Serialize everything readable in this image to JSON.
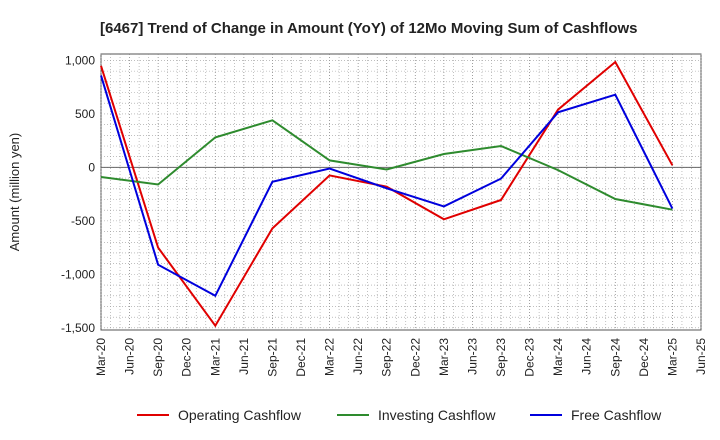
{
  "chart_data": {
    "type": "line",
    "title": "[6467]  Trend of Change in Amount (YoY) of 12Mo Moving Sum of Cashflows",
    "xlabel": "",
    "ylabel": "Amount (million yen)",
    "ylim": [
      -1520,
      1060
    ],
    "yticks": [
      1000,
      500,
      0,
      -500,
      -1000,
      -1500
    ],
    "ytick_labels": [
      "1,000",
      "500",
      "0",
      "-500",
      "-1,000",
      "-1,500"
    ],
    "categories": [
      "Mar-20",
      "Jun-20",
      "Sep-20",
      "Dec-20",
      "Mar-21",
      "Jun-21",
      "Sep-21",
      "Dec-21",
      "Mar-22",
      "Jun-22",
      "Sep-22",
      "Dec-22",
      "Mar-23",
      "Jun-23",
      "Sep-23",
      "Dec-23",
      "Mar-24",
      "Jun-24",
      "Sep-24",
      "Dec-24",
      "Mar-25",
      "Jun-25"
    ],
    "grid": true,
    "legend_position": "bottom",
    "series": [
      {
        "name": "Operating Cashflow",
        "color": "#e00000",
        "x": [
          "Mar-20",
          "Sep-20",
          "Mar-21",
          "Sep-21",
          "Mar-22",
          "Sep-22",
          "Mar-23",
          "Sep-23",
          "Mar-24",
          "Sep-24",
          "Mar-25"
        ],
        "values": [
          950,
          -750,
          -1480,
          -570,
          -75,
          -180,
          -485,
          -305,
          540,
          985,
          20
        ]
      },
      {
        "name": "Investing Cashflow",
        "color": "#2e8b2e",
        "x": [
          "Mar-20",
          "Sep-20",
          "Mar-21",
          "Sep-21",
          "Mar-22",
          "Sep-22",
          "Mar-23",
          "Sep-23",
          "Mar-24",
          "Sep-24",
          "Mar-25"
        ],
        "values": [
          -90,
          -160,
          280,
          440,
          65,
          -20,
          125,
          200,
          -25,
          -295,
          -395
        ]
      },
      {
        "name": "Free Cashflow",
        "color": "#0000dd",
        "x": [
          "Mar-20",
          "Sep-20",
          "Mar-21",
          "Sep-21",
          "Mar-22",
          "Sep-22",
          "Mar-23",
          "Sep-23",
          "Mar-24",
          "Sep-24",
          "Mar-25"
        ],
        "values": [
          860,
          -910,
          -1200,
          -135,
          -10,
          -195,
          -365,
          -105,
          515,
          680,
          -385
        ]
      }
    ]
  }
}
